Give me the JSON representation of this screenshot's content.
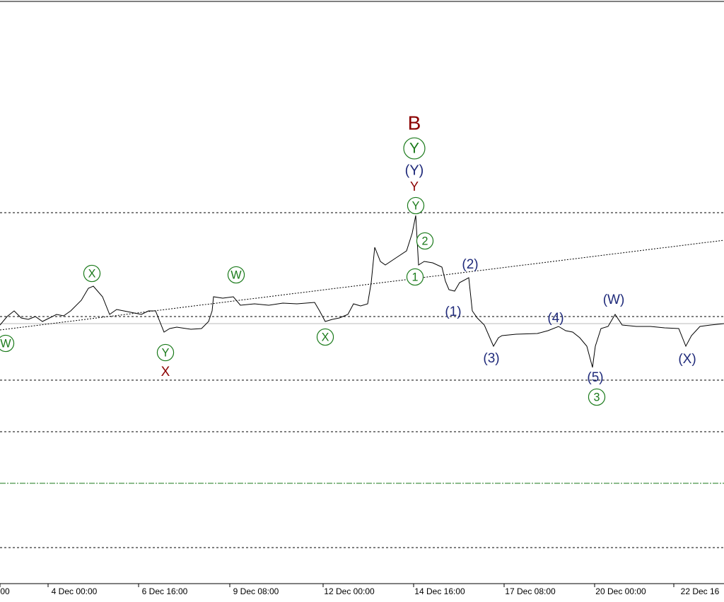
{
  "chart_data": {
    "type": "line",
    "x_labels": [
      "00",
      "4 Dec 00:00",
      "6 Dec 16:00",
      "9 Dec 08:00",
      "12 Dec 00:00",
      "14 Dec 16:00",
      "17 Dec 08:00",
      "20 Dec 00:00",
      "22 Dec 16"
    ],
    "annotations": [
      {
        "text": "B",
        "color": "#8b0000"
      },
      {
        "text": "Y",
        "color": "#1a7a1a",
        "circled": true
      },
      {
        "text": "(Y)",
        "color": "#1f2a7a"
      },
      {
        "text": "Y",
        "color": "#8b0000"
      },
      {
        "text": "Y",
        "color": "#1a7a1a",
        "circled": true
      },
      {
        "text": "2",
        "color": "#1a7a1a",
        "circled": true
      },
      {
        "text": "1",
        "color": "#1a7a1a",
        "circled": true
      },
      {
        "text": "(2)",
        "color": "#1f2a7a"
      },
      {
        "text": "(1)",
        "color": "#1f2a7a"
      },
      {
        "text": "(3)",
        "color": "#1f2a7a"
      },
      {
        "text": "(4)",
        "color": "#1f2a7a"
      },
      {
        "text": "(W)",
        "color": "#1f2a7a"
      },
      {
        "text": "(5)",
        "color": "#1f2a7a"
      },
      {
        "text": "3",
        "color": "#1a7a1a",
        "circled": true
      },
      {
        "text": "(X)",
        "color": "#1f2a7a"
      },
      {
        "text": "W",
        "color": "#1a7a1a",
        "circled": true
      },
      {
        "text": "X",
        "color": "#1a7a1a",
        "circled": true
      },
      {
        "text": "Y",
        "color": "#1a7a1a",
        "circled": true
      },
      {
        "text": "X",
        "color": "#8b0000"
      },
      {
        "text": "W",
        "color": "#1a7a1a",
        "circled": true
      },
      {
        "text": "X",
        "color": "#1a7a1a",
        "circled": true
      }
    ]
  }
}
